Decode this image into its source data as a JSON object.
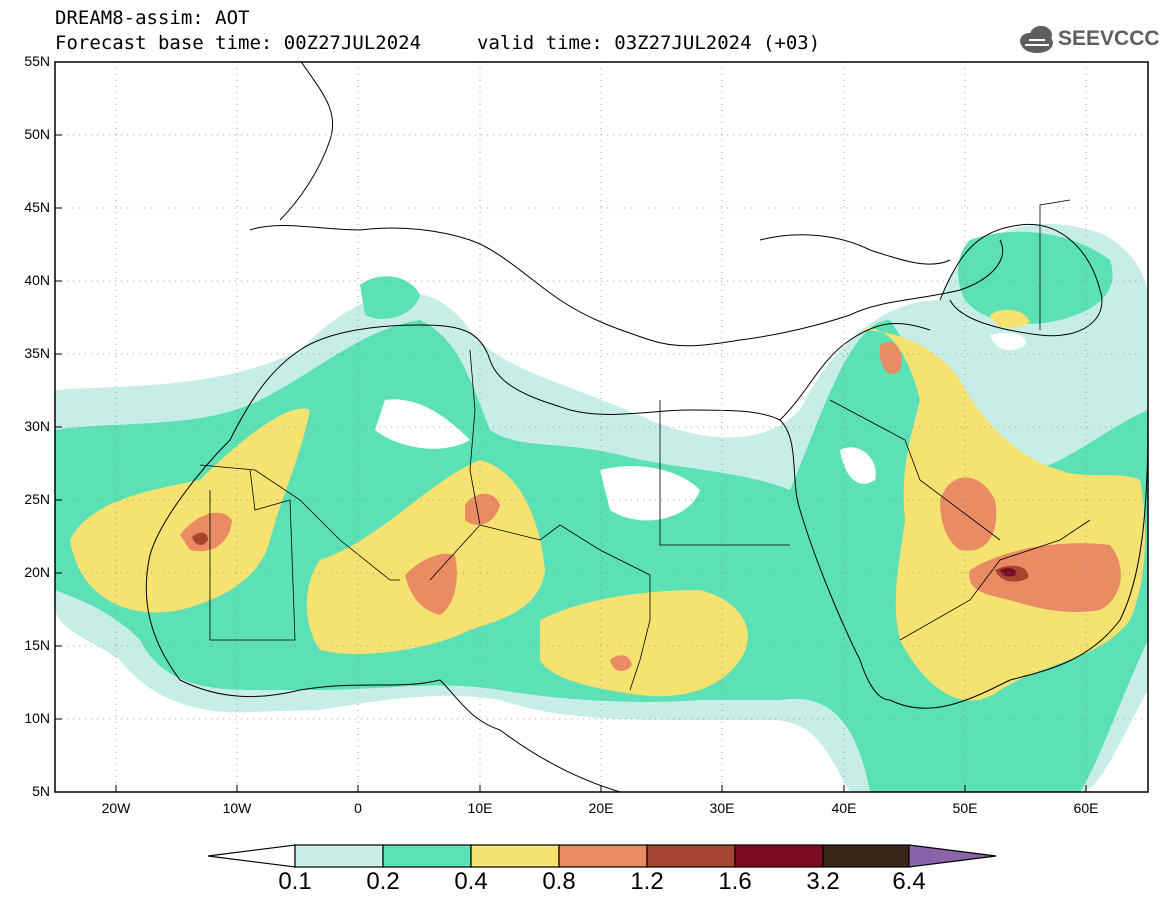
{
  "header": {
    "title": "DREAM8-assim: AOT",
    "base_time": "Forecast base time: 00Z27JUL2024",
    "valid_time": "valid time: 03Z27JUL2024 (+03)",
    "logo_text": "SEEVCCC"
  },
  "map": {
    "lat_labels": [
      "55N",
      "50N",
      "45N",
      "40N",
      "35N",
      "30N",
      "25N",
      "20N",
      "15N",
      "10N",
      "5N"
    ],
    "lon_labels": [
      "20W",
      "10W",
      "0",
      "10E",
      "20E",
      "30E",
      "40E",
      "50E",
      "60E"
    ]
  },
  "colorbar": {
    "labels": [
      "0.1",
      "0.2",
      "0.4",
      "0.8",
      "1.2",
      "1.6",
      "3.2",
      "6.4"
    ],
    "colors": [
      "#c7eee6",
      "#5be1b5",
      "#f6e270",
      "#e98b63",
      "#a5452f",
      "#7c0b24",
      "#3a2519",
      "#8a63a8"
    ]
  }
}
